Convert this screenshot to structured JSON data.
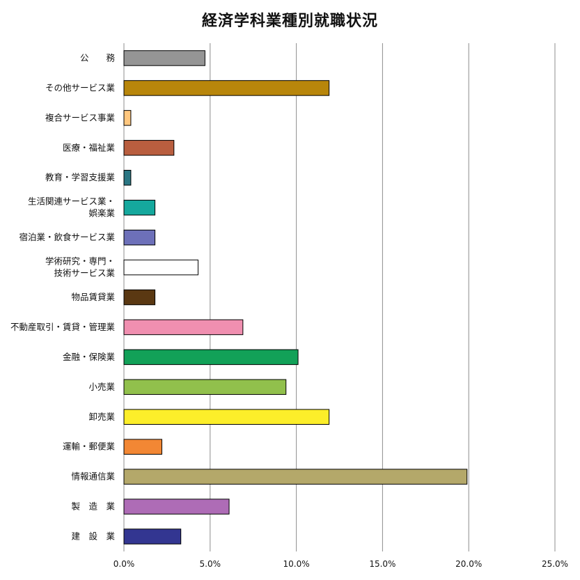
{
  "chart_data": {
    "type": "bar",
    "orientation": "horizontal",
    "title": "経済学科業種別就職状況",
    "xlabel": "",
    "ylabel": "",
    "xlim": [
      0,
      0.25
    ],
    "x_ticks": [
      "0.0%",
      "5.0%",
      "10.0%",
      "15.0%",
      "20.0%",
      "25.0%"
    ],
    "grid": true,
    "legend": "none",
    "categories": [
      [
        "公　　務"
      ],
      [
        "その他サービス業"
      ],
      [
        "複合サービス事業"
      ],
      [
        "医療・福祉業"
      ],
      [
        "教育・学習支援業"
      ],
      [
        "生活関連サービス業・",
        "娯楽業"
      ],
      [
        "宿泊業・飲食サービス業"
      ],
      [
        "学術研究・専門・",
        "技術サービス業"
      ],
      [
        "物品賃貸業"
      ],
      [
        "不動産取引・賃貸・管理業"
      ],
      [
        "金融・保険業"
      ],
      [
        "小売業"
      ],
      [
        "卸売業"
      ],
      [
        "運輸・郵便業"
      ],
      [
        "情報通信業"
      ],
      [
        "製　造　業"
      ],
      [
        "建　設　業"
      ]
    ],
    "values": [
      0.047,
      0.119,
      0.004,
      0.029,
      0.004,
      0.018,
      0.018,
      0.043,
      0.018,
      0.069,
      0.101,
      0.094,
      0.119,
      0.022,
      0.199,
      0.061,
      0.033
    ],
    "colors": [
      "#959595",
      "#B8860B",
      "#FFC77F",
      "#B95E3F",
      "#2A7683",
      "#15A89D",
      "#6D70B9",
      "#FFFFFF",
      "#5A3812",
      "#F08FB0",
      "#12A158",
      "#91C04C",
      "#FCEE2A",
      "#F28734",
      "#B4A86A",
      "#AE6CB6",
      "#333691"
    ]
  }
}
